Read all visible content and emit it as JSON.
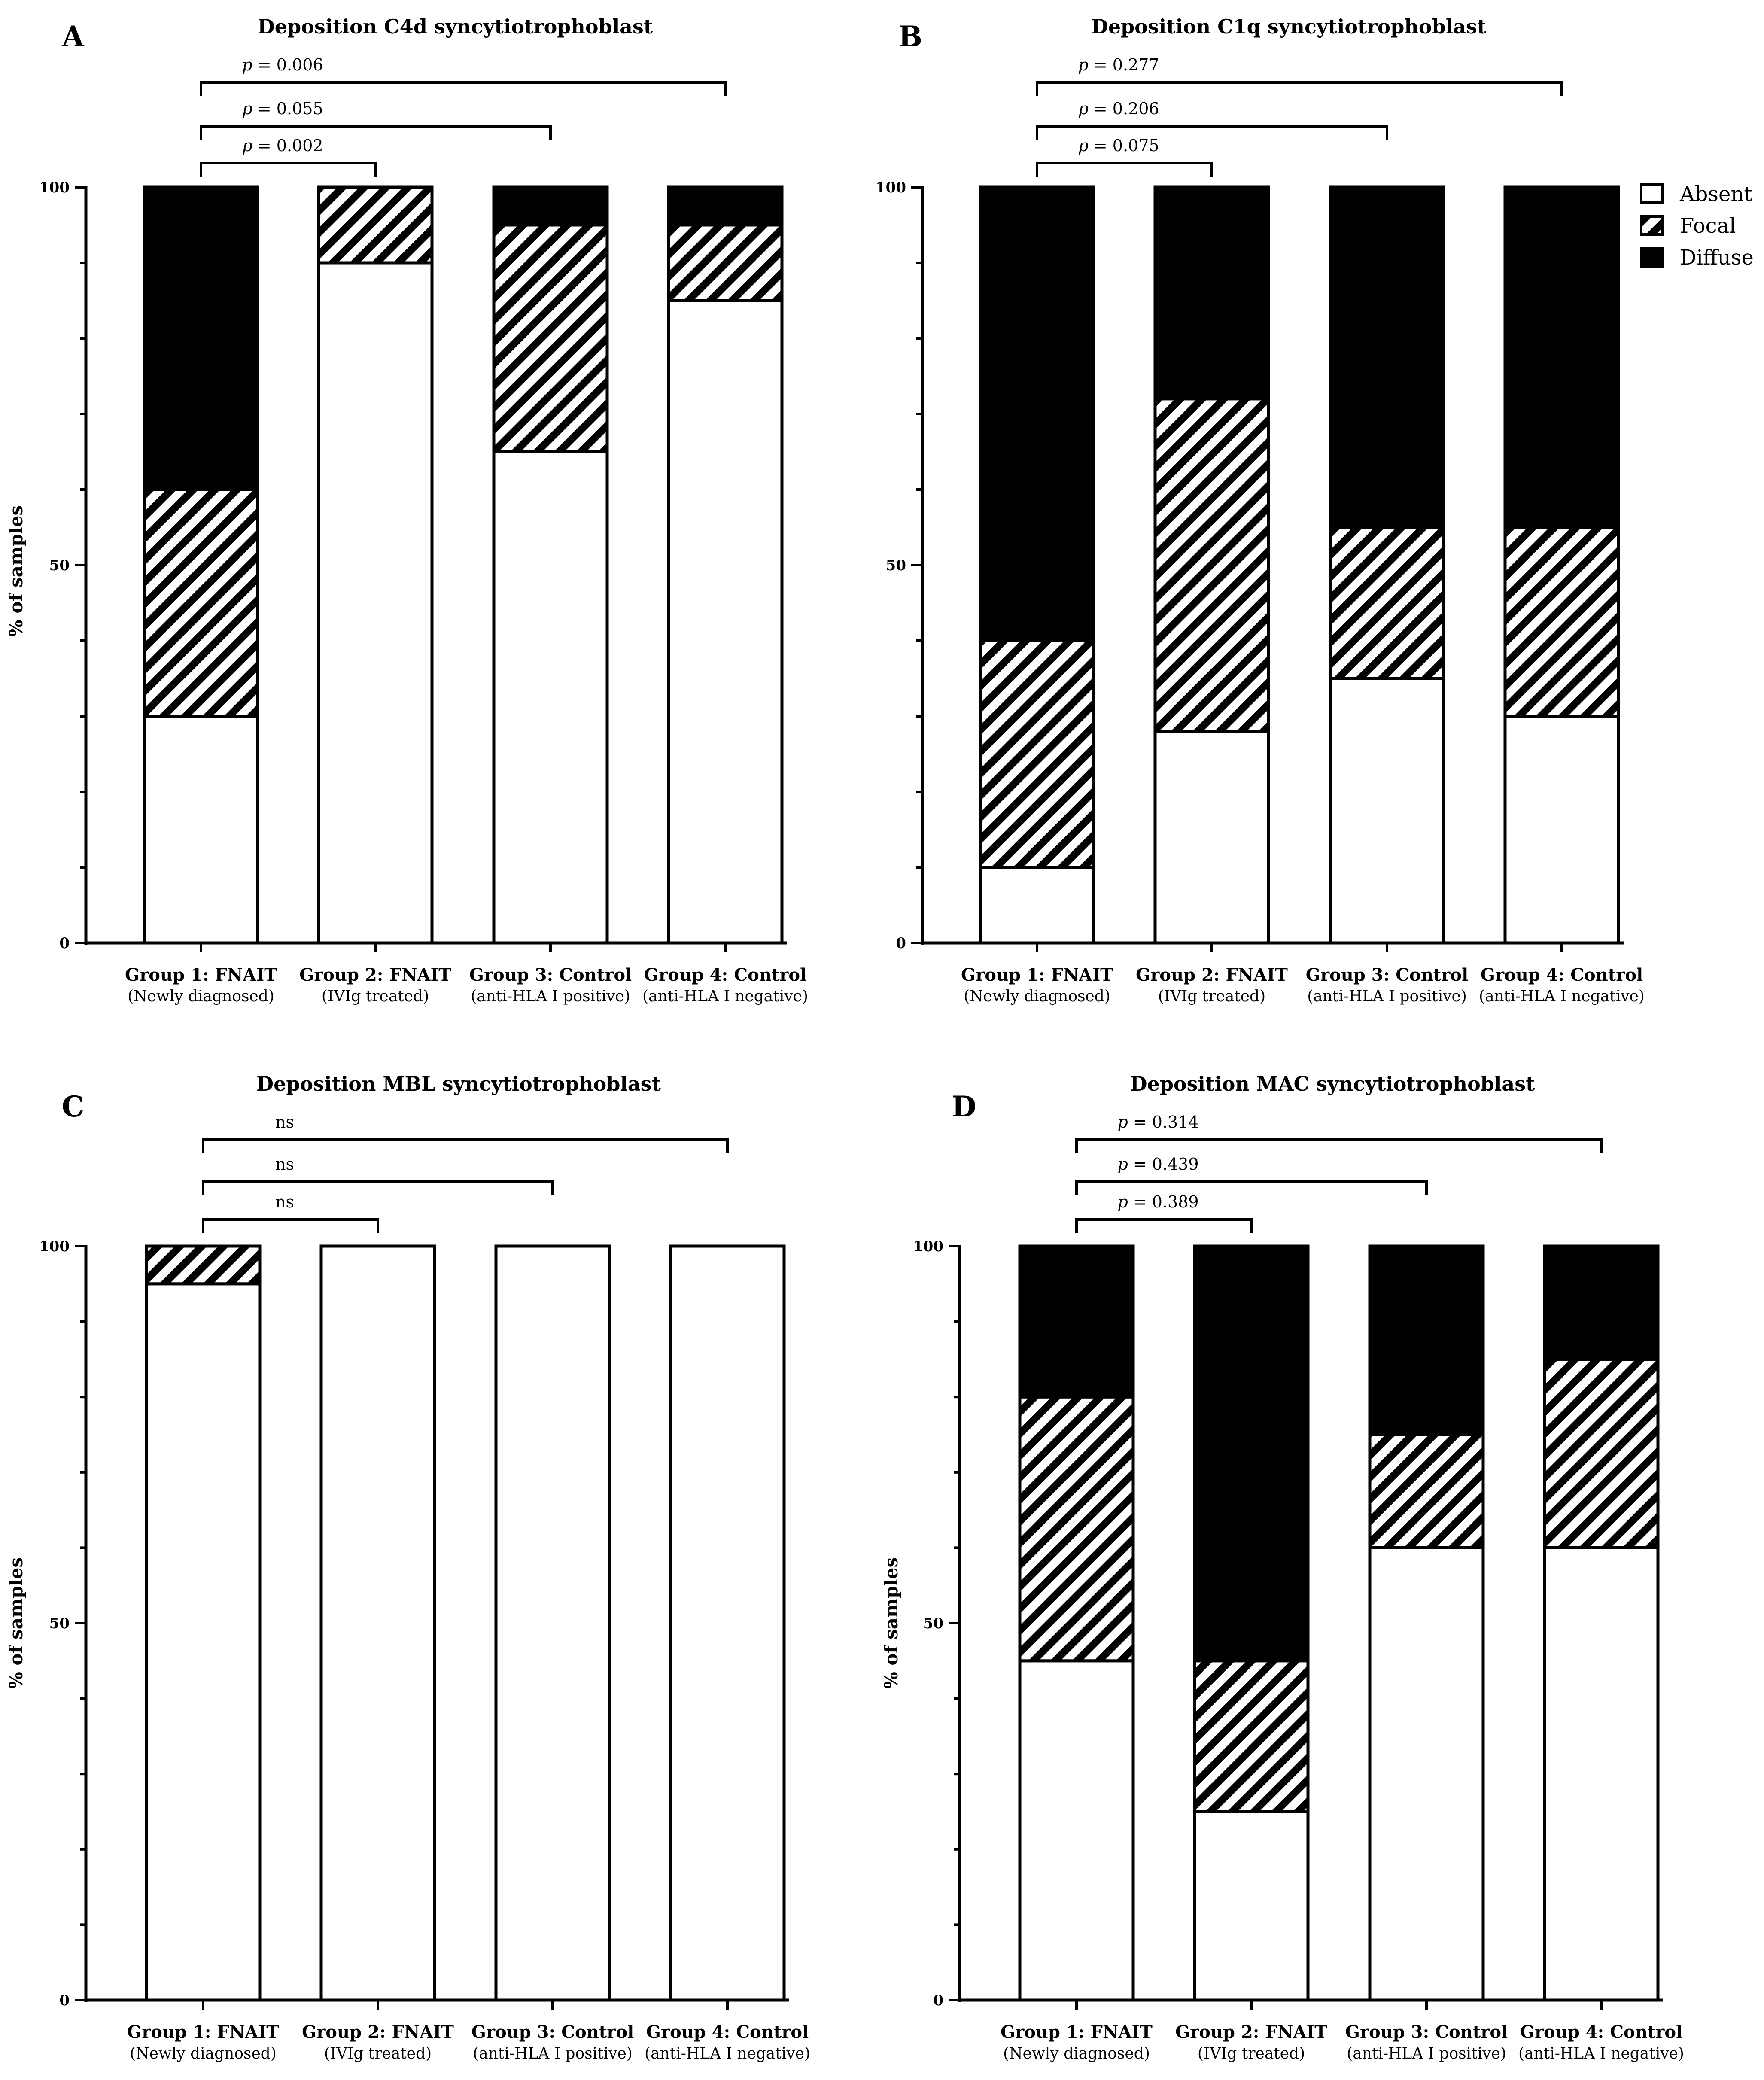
{
  "legend": {
    "entries": [
      {
        "key": "absent",
        "label": "Absent"
      },
      {
        "key": "focal",
        "label": "Focal"
      },
      {
        "key": "diffuse",
        "label": "Diffuse"
      }
    ]
  },
  "chart_data": [
    {
      "type": "bar",
      "stacked": true,
      "panel": "A",
      "title": "Deposition C4d  syncytiotrophoblast",
      "ylabel": "% of samples",
      "ylim": [
        0,
        100
      ],
      "yticks": [
        0,
        50,
        100
      ],
      "categories": [
        "Group 1: FNAIT",
        "Group 2: FNAIT",
        "Group 3: Control",
        "Group 4: Control"
      ],
      "subcategories": [
        "(Newly diagnosed)",
        "(IVIg treated)",
        "(anti-HLA I positive)",
        "(anti-HLA I negative)"
      ],
      "series": [
        {
          "name": "Absent",
          "values": [
            30,
            90,
            65,
            85
          ]
        },
        {
          "name": "Focal",
          "values": [
            30,
            10,
            30,
            10
          ]
        },
        {
          "name": "Diffuse",
          "values": [
            40,
            0,
            5,
            5
          ]
        }
      ],
      "comparisons": [
        {
          "from": 1,
          "to": 2,
          "label": "p = 0.002"
        },
        {
          "from": 1,
          "to": 3,
          "label": "p = 0.055"
        },
        {
          "from": 1,
          "to": 4,
          "label": "p = 0.006"
        }
      ]
    },
    {
      "type": "bar",
      "stacked": true,
      "panel": "B",
      "title": "Deposition C1q syncytiotrophoblast",
      "ylabel": "",
      "ylim": [
        0,
        100
      ],
      "yticks": [
        0,
        50,
        100
      ],
      "categories": [
        "Group 1: FNAIT",
        "Group 2: FNAIT",
        "Group 3: Control",
        "Group 4: Control"
      ],
      "subcategories": [
        "(Newly diagnosed)",
        "(IVIg treated)",
        "(anti-HLA I positive)",
        "(anti-HLA I negative)"
      ],
      "series": [
        {
          "name": "Absent",
          "values": [
            10,
            28,
            35,
            30
          ]
        },
        {
          "name": "Focal",
          "values": [
            30,
            44,
            20,
            25
          ]
        },
        {
          "name": "Diffuse",
          "values": [
            60,
            28,
            45,
            45
          ]
        }
      ],
      "comparisons": [
        {
          "from": 1,
          "to": 2,
          "label": "p = 0.075"
        },
        {
          "from": 1,
          "to": 3,
          "label": "p = 0.206"
        },
        {
          "from": 1,
          "to": 4,
          "label": "p = 0.277"
        }
      ]
    },
    {
      "type": "bar",
      "stacked": true,
      "panel": "C",
      "title": "Deposition MBL syncytiotrophoblast",
      "ylabel": "% of samples",
      "ylim": [
        0,
        100
      ],
      "yticks": [
        0,
        50,
        100
      ],
      "categories": [
        "Group 1: FNAIT",
        "Group 2: FNAIT",
        "Group 3: Control",
        "Group 4: Control"
      ],
      "subcategories": [
        "(Newly diagnosed)",
        "(IVIg treated)",
        "(anti-HLA I positive)",
        "(anti-HLA I negative)"
      ],
      "series": [
        {
          "name": "Absent",
          "values": [
            95,
            100,
            100,
            100
          ]
        },
        {
          "name": "Focal",
          "values": [
            5,
            0,
            0,
            0
          ]
        },
        {
          "name": "Diffuse",
          "values": [
            0,
            0,
            0,
            0
          ]
        }
      ],
      "comparisons": [
        {
          "from": 1,
          "to": 2,
          "label": "ns"
        },
        {
          "from": 1,
          "to": 3,
          "label": "ns"
        },
        {
          "from": 1,
          "to": 4,
          "label": "ns"
        }
      ]
    },
    {
      "type": "bar",
      "stacked": true,
      "panel": "D",
      "title": "Deposition MAC syncytiotrophoblast",
      "ylabel": "% of samples",
      "ylim": [
        0,
        100
      ],
      "yticks": [
        0,
        50,
        100
      ],
      "categories": [
        "Group 1: FNAIT",
        "Group 2: FNAIT",
        "Group 3: Control",
        "Group 4: Control"
      ],
      "subcategories": [
        "(Newly diagnosed)",
        "(IVIg treated)",
        "(anti-HLA I positive)",
        "(anti-HLA I negative)"
      ],
      "series": [
        {
          "name": "Absent",
          "values": [
            45,
            25,
            60,
            60
          ]
        },
        {
          "name": "Focal",
          "values": [
            35,
            20,
            15,
            25
          ]
        },
        {
          "name": "Diffuse",
          "values": [
            20,
            55,
            25,
            15
          ]
        }
      ],
      "comparisons": [
        {
          "from": 1,
          "to": 2,
          "label": "p = 0.389"
        },
        {
          "from": 1,
          "to": 3,
          "label": "p = 0.439"
        },
        {
          "from": 1,
          "to": 4,
          "label": "p = 0.314"
        }
      ]
    }
  ]
}
